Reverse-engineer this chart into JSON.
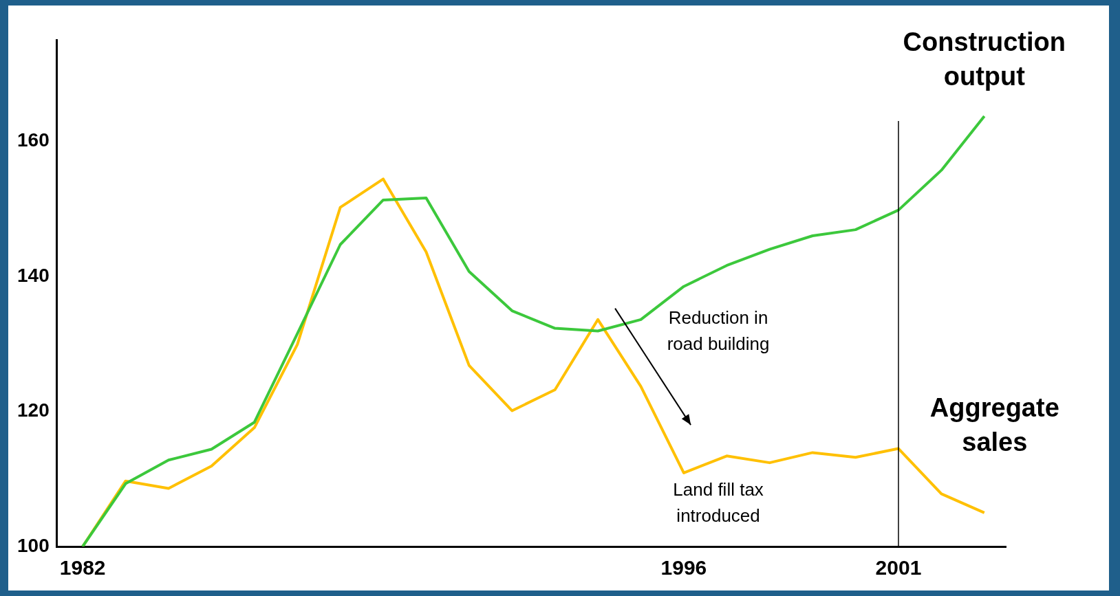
{
  "chart_data": {
    "type": "line",
    "x": [
      1982,
      1983,
      1984,
      1985,
      1986,
      1987,
      1988,
      1989,
      1990,
      1991,
      1992,
      1993,
      1994,
      1995,
      1996,
      1997,
      1998,
      1999,
      2000,
      2001,
      2002,
      2003
    ],
    "series": [
      {
        "name": "Construction output",
        "color": "#3cc83c",
        "values": [
          100,
          109.3,
          112.8,
          114.4,
          118.4,
          131.5,
          144.7,
          151.3,
          151.6,
          140.7,
          134.9,
          132.3,
          131.9,
          133.6,
          138.5,
          141.6,
          144,
          146,
          146.9,
          149.8,
          155.7,
          163.7
        ]
      },
      {
        "name": "Aggregate sales",
        "color": "#ffc000",
        "values": [
          100,
          109.7,
          108.6,
          111.9,
          117.6,
          129.9,
          150.2,
          154.4,
          143.6,
          126.8,
          120.1,
          123.2,
          133.6,
          123.7,
          110.9,
          113.4,
          112.4,
          113.9,
          113.2,
          114.5,
          107.8,
          105
        ]
      }
    ],
    "xlim": [
      1981.4,
      2003.5
    ],
    "xticks": [
      1982,
      1996,
      2001
    ],
    "ylim": [
      100,
      175
    ],
    "yticks": [
      100,
      120,
      140,
      160
    ],
    "ref_lines": [
      {
        "axis": "x",
        "value": 2001,
        "color": "#000000"
      }
    ],
    "annotations": [
      "Reduction in road building",
      "Land fill tax introduced"
    ],
    "grid": false,
    "legend": false,
    "marker": "none",
    "line_style": "solid"
  }
}
